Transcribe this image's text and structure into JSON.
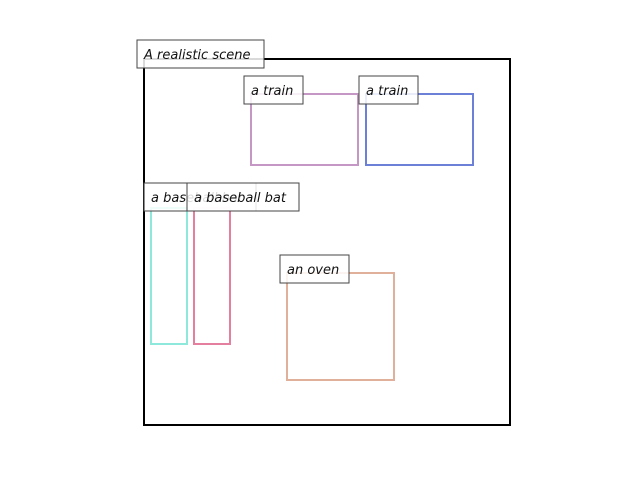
{
  "scene": {
    "title": "A realistic scene",
    "frame_color": "#000000",
    "label_border_color": "#444444",
    "label_fill": "#ffffff"
  },
  "objects": [
    {
      "label": "a train",
      "color": "#c497c4"
    },
    {
      "label": "a train",
      "color": "#6b80d6"
    },
    {
      "label": "a baseball bat",
      "color": "#8ee8dc"
    },
    {
      "label": "a baseball bat",
      "color": "#e57fa0"
    },
    {
      "label": "an oven",
      "color": "#e0b09a"
    }
  ]
}
